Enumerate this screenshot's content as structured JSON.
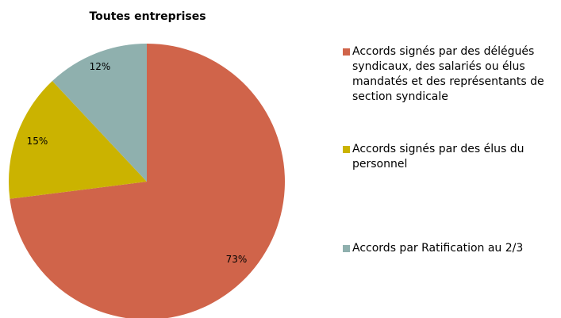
{
  "chart_data": {
    "type": "pie",
    "title": "Toutes entreprises",
    "start_angle_deg": 0,
    "direction": "clockwise",
    "slices": [
      {
        "label": "Accords signés par des délégués syndicaux, des salariés ou élus mandatés et des représentants de section syndicale",
        "value": 73,
        "value_label": "73%",
        "color": "#d0644a"
      },
      {
        "label": "Accords signés par des élus du personnel",
        "value": 15,
        "value_label": "15%",
        "color": "#cbb300"
      },
      {
        "label": "Accords par Ratification au 2/3",
        "value": 12,
        "value_label": "12%",
        "color": "#8fb0ae"
      }
    ],
    "legend_position": "right"
  }
}
